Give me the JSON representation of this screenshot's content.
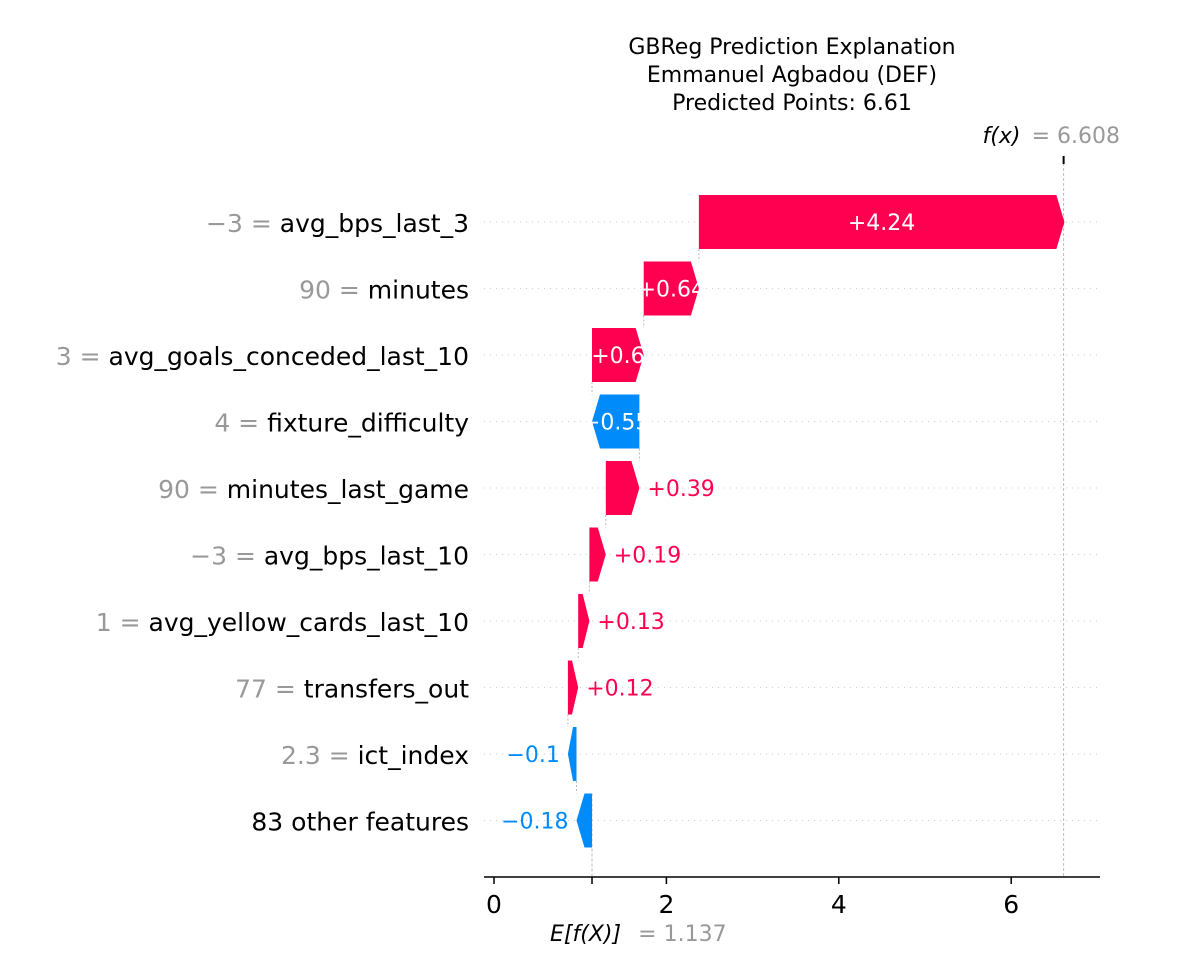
{
  "chart_data": {
    "type": "waterfall",
    "title_lines": [
      "GBReg Prediction Explanation",
      "Emmanuel Agbadou (DEF)",
      "Predicted Points: 6.61"
    ],
    "base_value": 1.137,
    "base_label_text": "E[f(X)]",
    "base_value_text": "= 1.137",
    "final_value": 6.608,
    "final_label_text": "f(x)",
    "final_value_text": "= 6.608",
    "xlim": [
      -0.05,
      7.0
    ],
    "xticks": [
      0,
      2,
      4,
      6
    ],
    "xtick_labels": [
      "0",
      "2",
      "4",
      "6"
    ],
    "grid": false,
    "positive_color": "#ff0051",
    "negative_color": "#008bfb",
    "features": [
      {
        "value": "−3",
        "name": "avg_bps_last_3",
        "contribution": 4.24,
        "label": "+4.24"
      },
      {
        "value": "90",
        "name": "minutes",
        "contribution": 0.64,
        "label": "+0.64"
      },
      {
        "value": "3",
        "name": "avg_goals_conceded_last_10",
        "contribution": 0.6,
        "label": "+0.6"
      },
      {
        "value": "4",
        "name": "fixture_difficulty",
        "contribution": -0.55,
        "label": "−0.55"
      },
      {
        "value": "90",
        "name": "minutes_last_game",
        "contribution": 0.39,
        "label": "+0.39"
      },
      {
        "value": "−3",
        "name": "avg_bps_last_10",
        "contribution": 0.19,
        "label": "+0.19"
      },
      {
        "value": "1",
        "name": "avg_yellow_cards_last_10",
        "contribution": 0.13,
        "label": "+0.13"
      },
      {
        "value": "77",
        "name": "transfers_out",
        "contribution": 0.12,
        "label": "+0.12"
      },
      {
        "value": "2.3",
        "name": "ict_index",
        "contribution": -0.1,
        "label": "−0.1"
      },
      {
        "value": "",
        "name": "83 other features",
        "contribution": -0.18,
        "label": "−0.18"
      }
    ]
  }
}
